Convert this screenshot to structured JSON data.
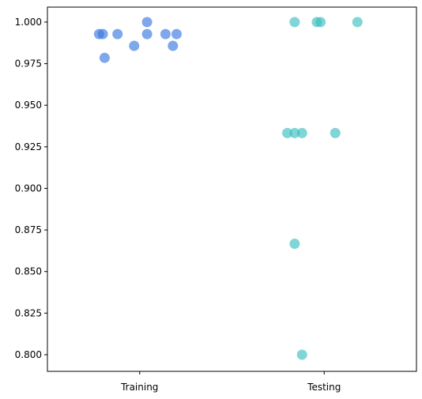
{
  "chart_data": {
    "type": "scatter",
    "title": "",
    "xlabel": "",
    "ylabel": "",
    "categories": [
      "Training",
      "Testing"
    ],
    "ylim": [
      0.79,
      1.009
    ],
    "yticks": [
      "0.800",
      "0.825",
      "0.850",
      "0.875",
      "0.900",
      "0.925",
      "0.950",
      "0.975",
      "1.000"
    ],
    "grid": false,
    "legend": "none",
    "series": [
      {
        "category": "Training",
        "color": "#3a78e0",
        "points": [
          {
            "x": 0.04,
            "y": 1.0
          },
          {
            "x": -0.22,
            "y": 0.9928
          },
          {
            "x": -0.2,
            "y": 0.9928
          },
          {
            "x": -0.12,
            "y": 0.9928
          },
          {
            "x": 0.04,
            "y": 0.9928
          },
          {
            "x": 0.14,
            "y": 0.9928
          },
          {
            "x": 0.2,
            "y": 0.9928
          },
          {
            "x": -0.03,
            "y": 0.9857
          },
          {
            "x": 0.18,
            "y": 0.9857
          },
          {
            "x": -0.19,
            "y": 0.9785
          }
        ]
      },
      {
        "category": "Testing",
        "color": "#3cbfc0",
        "points": [
          {
            "x": -0.16,
            "y": 1.0
          },
          {
            "x": -0.04,
            "y": 1.0
          },
          {
            "x": -0.02,
            "y": 1.0
          },
          {
            "x": 0.18,
            "y": 1.0
          },
          {
            "x": -0.2,
            "y": 0.9333
          },
          {
            "x": -0.16,
            "y": 0.9333
          },
          {
            "x": -0.12,
            "y": 0.9333
          },
          {
            "x": 0.06,
            "y": 0.9333
          },
          {
            "x": -0.16,
            "y": 0.8667
          },
          {
            "x": -0.12,
            "y": 0.8
          }
        ]
      }
    ]
  }
}
